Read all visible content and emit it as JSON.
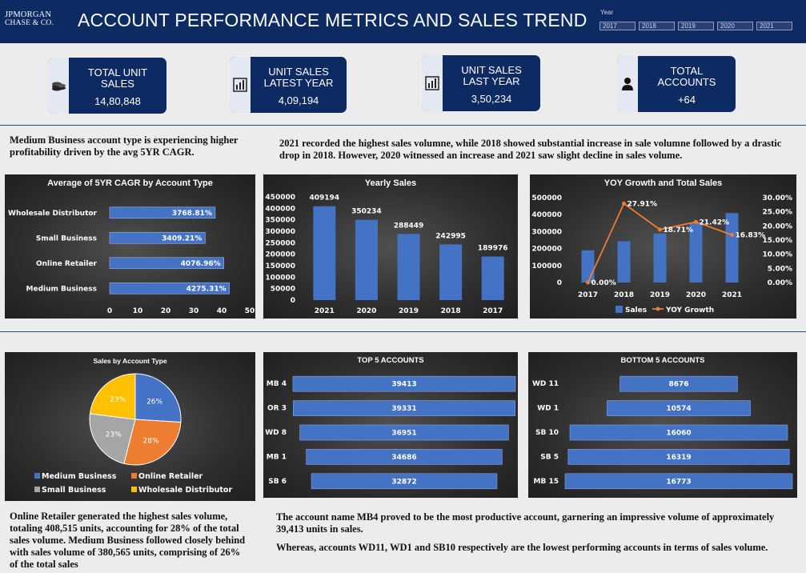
{
  "header": {
    "logo_line1": "JPMORGAN",
    "logo_line2": "CHASE & CO.",
    "title": "ACCOUNT PERFORMANCE METRICS AND SALES TREND",
    "slicer_label": "Year",
    "years": [
      "2017",
      "2018",
      "2019",
      "2020",
      "2021"
    ]
  },
  "kpis": [
    {
      "label": "TOTAL UNIT\nSALES",
      "value": "14,80,848",
      "icon": "coins-icon"
    },
    {
      "label": "UNIT SALES\nLATEST YEAR",
      "value": "4,09,194",
      "icon": "bar-chart-icon"
    },
    {
      "label": "UNIT SALES\nLAST YEAR",
      "value": "3,50,234",
      "icon": "bar-chart-icon"
    },
    {
      "label": "TOTAL\nACCOUNTS",
      "value": "+64",
      "icon": "person-icon"
    }
  ],
  "notes": {
    "cagr": "Medium Business account type is experiencing higher profitability driven by the avg 5YR CAGR.",
    "yearly": "2021 recorded the highest sales volumne, while 2018 showed substantial increase in sale volumne followed by a drastic drop in 2018. However, 2020 witnessed an increase and 2021 saw slight decline in sales volume.",
    "online": "Online Retailer generated the highest sales volume, totaling 408,515 units, accounting for 28% of the total sales volume. Medium Business followed closely behind with sales volume of 380,565 units, comprising of 26% of the total sales",
    "top_account": "The account name MB4 proved to be the most productive account, garnering an impressive volume of approximately 39,413 units in sales.",
    "lowest": "Whereas, accounts WD11, WD1 and SB10 respectively are the lowest performing accounts in terms of sales volume."
  },
  "colors": {
    "header": "#0d2a63",
    "bar": "#4472c4",
    "line": "#ed7d31",
    "gray": "#a5a5a5",
    "yellow": "#ffc000"
  },
  "chart_data": [
    {
      "type": "bar",
      "orientation": "horizontal",
      "title": "Average of 5YR CAGR by Account Type",
      "categories": [
        "Wholesale Distributor",
        "Small Business",
        "Online Retailer",
        "Medium Business"
      ],
      "values": [
        37.6881,
        34.0921,
        40.7696,
        42.7531
      ],
      "data_labels": [
        "3768.81%",
        "3409.21%",
        "4076.96%",
        "4275.31%"
      ],
      "xlim": [
        0,
        50
      ],
      "xticks": [
        "0",
        "10",
        "20",
        "30",
        "40",
        "50"
      ]
    },
    {
      "type": "bar",
      "title": "Yearly Sales",
      "categories": [
        "2021",
        "2020",
        "2019",
        "2018",
        "2017"
      ],
      "values": [
        409194,
        350234,
        288449,
        242995,
        189976
      ],
      "ylim": [
        0,
        450000
      ],
      "yticks": [
        "450000",
        "400000",
        "350000",
        "300000",
        "250000",
        "200000",
        "150000",
        "100000",
        "50000",
        "0"
      ]
    },
    {
      "type": "bar",
      "title": "YOY Growth and Total Sales",
      "categories": [
        "2017",
        "2018",
        "2019",
        "2020",
        "2021"
      ],
      "series": [
        {
          "name": "Sales",
          "type": "bar",
          "values": [
            189976,
            242995,
            288449,
            350234,
            409194
          ]
        },
        {
          "name": "YOY Growth",
          "type": "line",
          "values": [
            0.0,
            27.91,
            18.71,
            21.42,
            16.83
          ],
          "labels": [
            "0.00%",
            "27.91%",
            "18.71%",
            "21.42%",
            "16.83%"
          ]
        }
      ],
      "ylim": [
        0,
        500000
      ],
      "y2lim": [
        0,
        30
      ],
      "yticks": [
        "500000",
        "400000",
        "300000",
        "200000",
        "100000",
        "0"
      ],
      "y2ticks": [
        "30.00%",
        "25.00%",
        "20.00%",
        "15.00%",
        "10.00%",
        "5.00%",
        "0.00%"
      ],
      "legend": "bottom"
    },
    {
      "type": "pie",
      "title": "Sales by Account Type",
      "categories": [
        "Medium Business",
        "Online Retailer",
        "Small Business",
        "Wholesale Distributor"
      ],
      "values": [
        26,
        28,
        23,
        23
      ],
      "labels": [
        "26%",
        "28%",
        "23%",
        "23%"
      ],
      "legend": "bottom"
    },
    {
      "type": "bar",
      "orientation": "horizontal",
      "title": "TOP 5 ACCOUNTS",
      "categories": [
        "MB 4",
        "OR 3",
        "WD 8",
        "MB 1",
        "SB 6"
      ],
      "values": [
        39413,
        39331,
        36951,
        34686,
        32872
      ]
    },
    {
      "type": "bar",
      "orientation": "horizontal",
      "title": "BOTTOM 5 ACCOUNTS",
      "categories": [
        "WD 11",
        "WD 1",
        "SB 10",
        "SB 5",
        "MB 15"
      ],
      "values": [
        8676,
        10574,
        16060,
        16319,
        16773
      ]
    }
  ]
}
